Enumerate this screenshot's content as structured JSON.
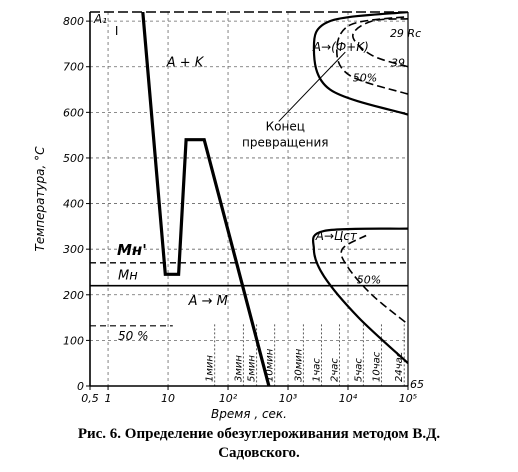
{
  "chart_data": {
    "type": "line",
    "xscale": "log",
    "xlabel": "Время , сек.",
    "ylabel": "Температура, °С",
    "xlim": [
      0.5,
      100000
    ],
    "ylim": [
      0,
      820
    ],
    "x_ticks": [
      {
        "value": 0.5,
        "label": "0,5"
      },
      {
        "value": 1,
        "label": "1"
      },
      {
        "value": 10,
        "label": "10"
      },
      {
        "value": 100,
        "label": "10²"
      },
      {
        "value": 1000,
        "label": "10³"
      },
      {
        "value": 10000,
        "label": "10⁴"
      },
      {
        "value": 100000,
        "label": "10⁵"
      }
    ],
    "y_ticks": [
      0,
      100,
      200,
      300,
      400,
      500,
      600,
      700,
      800
    ],
    "time_marks": [
      {
        "value": 60,
        "label": "1мин"
      },
      {
        "value": 180,
        "label": "3мин"
      },
      {
        "value": 300,
        "label": "5мин"
      },
      {
        "value": 600,
        "label": "10мин"
      },
      {
        "value": 1800,
        "label": "30мин"
      },
      {
        "value": 3600,
        "label": "1час"
      },
      {
        "value": 7200,
        "label": "2час"
      },
      {
        "value": 18000,
        "label": "5час"
      },
      {
        "value": 36000,
        "label": "10час"
      },
      {
        "value": 86400,
        "label": "24час"
      }
    ],
    "reference_lines": [
      {
        "label": "A₁",
        "y": 820
      },
      {
        "label": "Mн'",
        "y": 270
      },
      {
        "label": "Mн",
        "y": 220
      },
      {
        "label": "50 %",
        "y": 132
      }
    ],
    "cooling_curve": {
      "x": [
        3.8,
        9,
        15,
        20,
        40,
        480
      ],
      "y": [
        820,
        245,
        245,
        540,
        540,
        0
      ]
    },
    "upper_c_curves": {
      "transformation_start": {
        "x": [
          100000,
          5000,
          2700,
          5000,
          100000
        ],
        "y": [
          595,
          650,
          742,
          800,
          820
        ]
      },
      "fifty_percent": {
        "x": [
          100000,
          11000,
          6500,
          11000,
          100000
        ],
        "y": [
          640,
          680,
          735,
          792,
          810
        ]
      },
      "transformation_end": {
        "x": [
          100000,
          25000,
          12000,
          25000,
          100000
        ],
        "y": [
          700,
          725,
          768,
          800,
          805
        ]
      }
    },
    "lower_c_curves": {
      "transformation_start": {
        "x": [
          100000,
          15000,
          4000,
          2700,
          4000,
          100000
        ],
        "y": [
          50,
          150,
          240,
          300,
          340,
          345
        ]
      },
      "fifty_percent": {
        "x": [
          90000,
          25000,
          10000,
          8000,
          20000
        ],
        "y": [
          140,
          200,
          260,
          300,
          330
        ]
      }
    },
    "region_labels": [
      "A + K",
      "A→(Ф+K)",
      "A→Цст",
      "A → M",
      "I"
    ],
    "annotations": [
      "Конец превращения",
      "50%",
      "29 Rc",
      "39",
      "65",
      "Mн'",
      "Mн",
      "50 %"
    ]
  },
  "caption_line1": "Рис. 6. Определение обезуглероживания методом В.Д.",
  "caption_line2": "Садовского."
}
